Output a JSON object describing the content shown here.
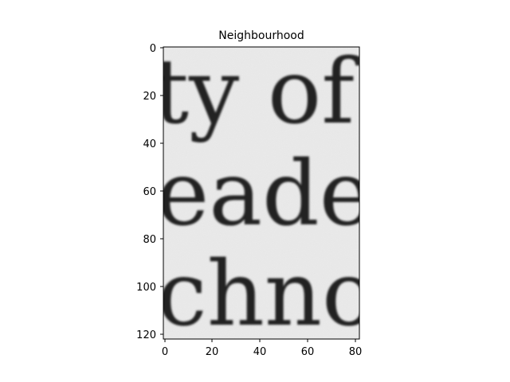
{
  "figure": {
    "title": "Neighbourhood",
    "image_text_lines": [
      "ty of",
      "eader",
      "chnol"
    ],
    "x_axis": {
      "ticks": [
        "0",
        "20",
        "40",
        "60",
        "80"
      ],
      "range": [
        0,
        81
      ]
    },
    "y_axis": {
      "ticks": [
        "0",
        "20",
        "40",
        "60",
        "80",
        "100",
        "120"
      ],
      "range": [
        0,
        123
      ],
      "inverted": true
    },
    "colors": {
      "paper": "#ebebeb",
      "ink": "#202020",
      "axes": "#000000",
      "background": "#ffffff"
    }
  }
}
